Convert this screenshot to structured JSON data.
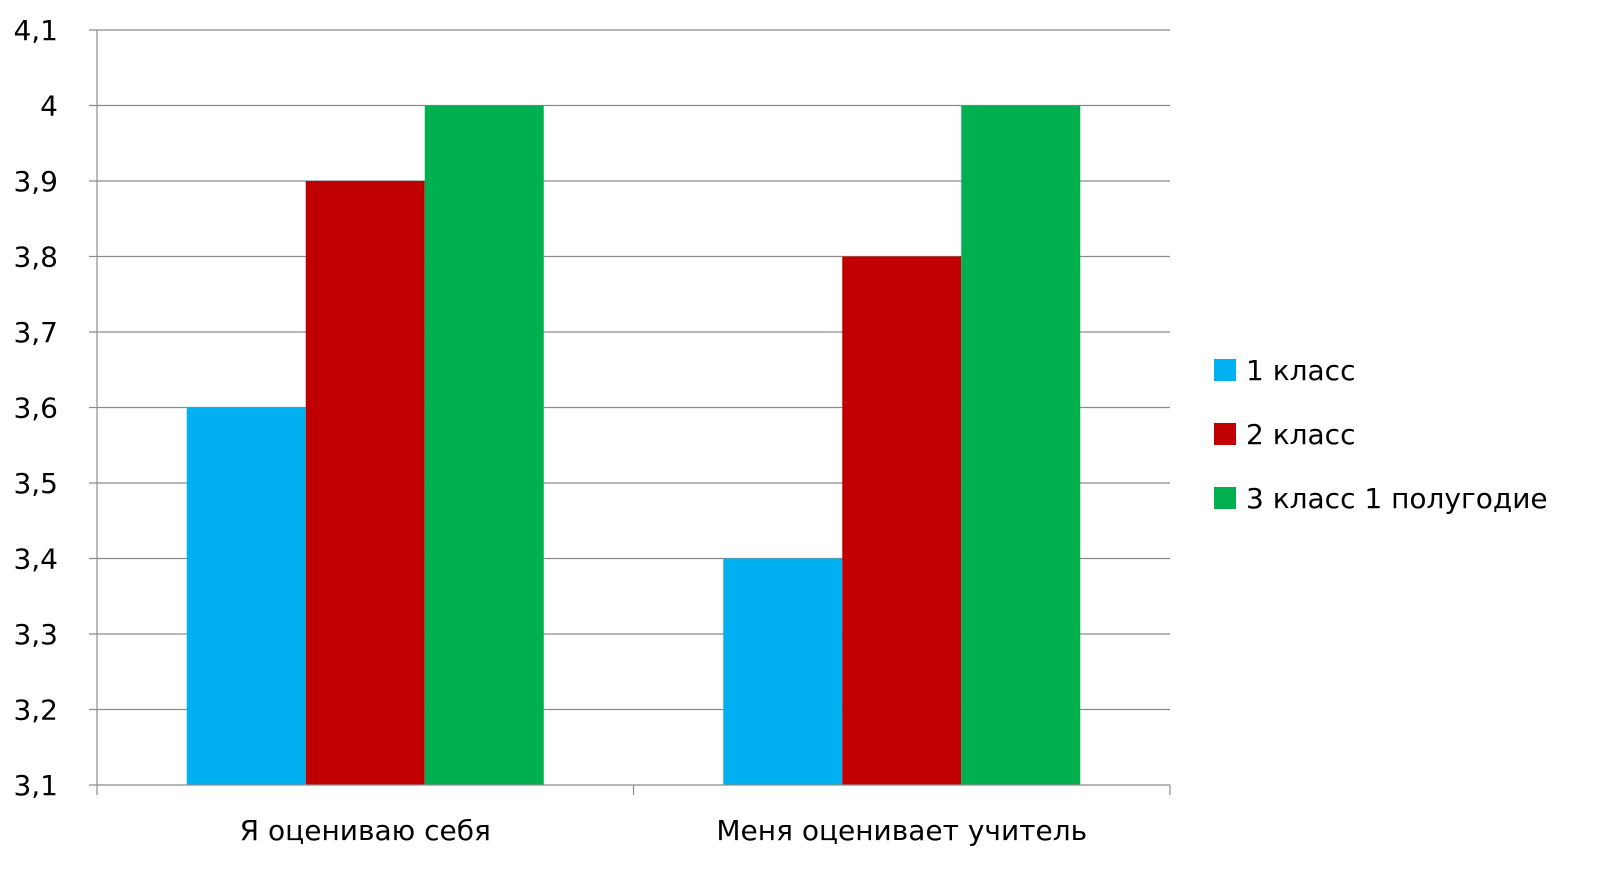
{
  "chart_data": {
    "type": "bar",
    "title": "",
    "xlabel": "",
    "ylabel": "",
    "categories": [
      "Я оцениваю себя",
      "Меня оценивает учитель"
    ],
    "series": [
      {
        "name": "1 класс",
        "values": [
          3.6,
          3.4
        ],
        "color": "#00B0F0"
      },
      {
        "name": "2 класс",
        "values": [
          3.9,
          3.8
        ],
        "color": "#C00000"
      },
      {
        "name": "3 класс 1 полугодие",
        "values": [
          4.0,
          4.0
        ],
        "color": "#00B050"
      }
    ],
    "ylim": [
      3.1,
      4.1
    ],
    "yticks": [
      "3,1",
      "3,2",
      "3,3",
      "3,4",
      "3,5",
      "3,6",
      "3,7",
      "3,8",
      "3,9",
      "4",
      "4,1"
    ],
    "grid": true,
    "legend_position": "right"
  }
}
